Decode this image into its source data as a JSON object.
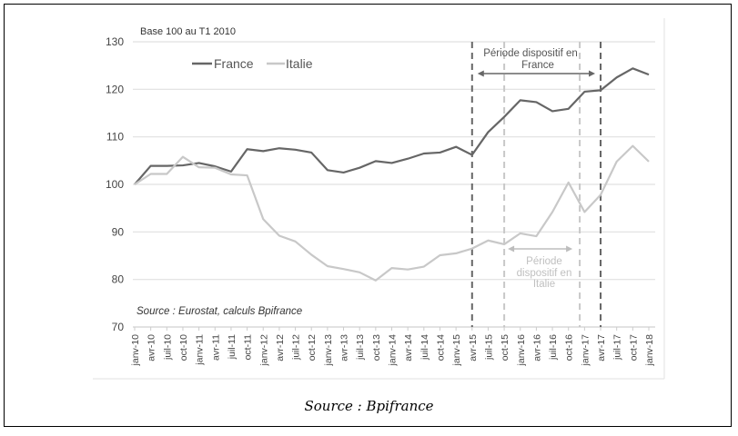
{
  "caption": "Source : Bpifrance",
  "chart_data": {
    "type": "line",
    "subtitle": "Base 100 au T1 2010",
    "source_note": "Source : Eurostat, calculs Bpifrance",
    "ylim": [
      70,
      130
    ],
    "yticks": [
      70,
      80,
      90,
      100,
      110,
      120,
      130
    ],
    "grid": true,
    "legend_placement": "top-left",
    "categories": [
      "janv-10",
      "avr-10",
      "juil-10",
      "oct-10",
      "janv-11",
      "avr-11",
      "juil-11",
      "oct-11",
      "janv-12",
      "avr-12",
      "juil-12",
      "oct-12",
      "janv-13",
      "avr-13",
      "juil-13",
      "oct-13",
      "janv-14",
      "avr-14",
      "juil-14",
      "oct-14",
      "janv-15",
      "avr-15",
      "juil-15",
      "oct-15",
      "janv-16",
      "avr-16",
      "juil-16",
      "oct-16",
      "janv-17",
      "avr-17",
      "juil-17",
      "oct-17",
      "janv-18"
    ],
    "series": [
      {
        "name": "France",
        "color": "#666666",
        "values": [
          100,
          103.9,
          103.9,
          104,
          104.5,
          103.8,
          102.7,
          107.4,
          107,
          107.6,
          107.3,
          106.7,
          103,
          102.5,
          103.5,
          104.9,
          104.5,
          105.4,
          106.5,
          106.7,
          107.9,
          106.2,
          111,
          114.2,
          117.7,
          117.3,
          115.4,
          115.9,
          119.5,
          119.8,
          122.5,
          124.4,
          123.1
        ]
      },
      {
        "name": "Italie",
        "color": "#c8c8c8",
        "values": [
          100,
          102.2,
          102.2,
          105.8,
          103.6,
          103.5,
          102.1,
          101.9,
          92.7,
          89.2,
          88,
          85.2,
          82.8,
          82.2,
          81.5,
          79.8,
          82.4,
          82.1,
          82.7,
          85.1,
          85.5,
          86.5,
          88.2,
          87.4,
          89.7,
          89.1,
          94.2,
          100.4,
          94.2,
          97.8,
          104.8,
          108.1,
          104.8
        ]
      }
    ],
    "annotations": [
      {
        "label": "Période dispositif en France",
        "start": "avr-15",
        "end": "avr-17",
        "color": "#666666"
      },
      {
        "label": "Période dispositif en Italie",
        "start": "oct-15",
        "end": "janv-17",
        "color": "#c8c8c8"
      }
    ]
  }
}
